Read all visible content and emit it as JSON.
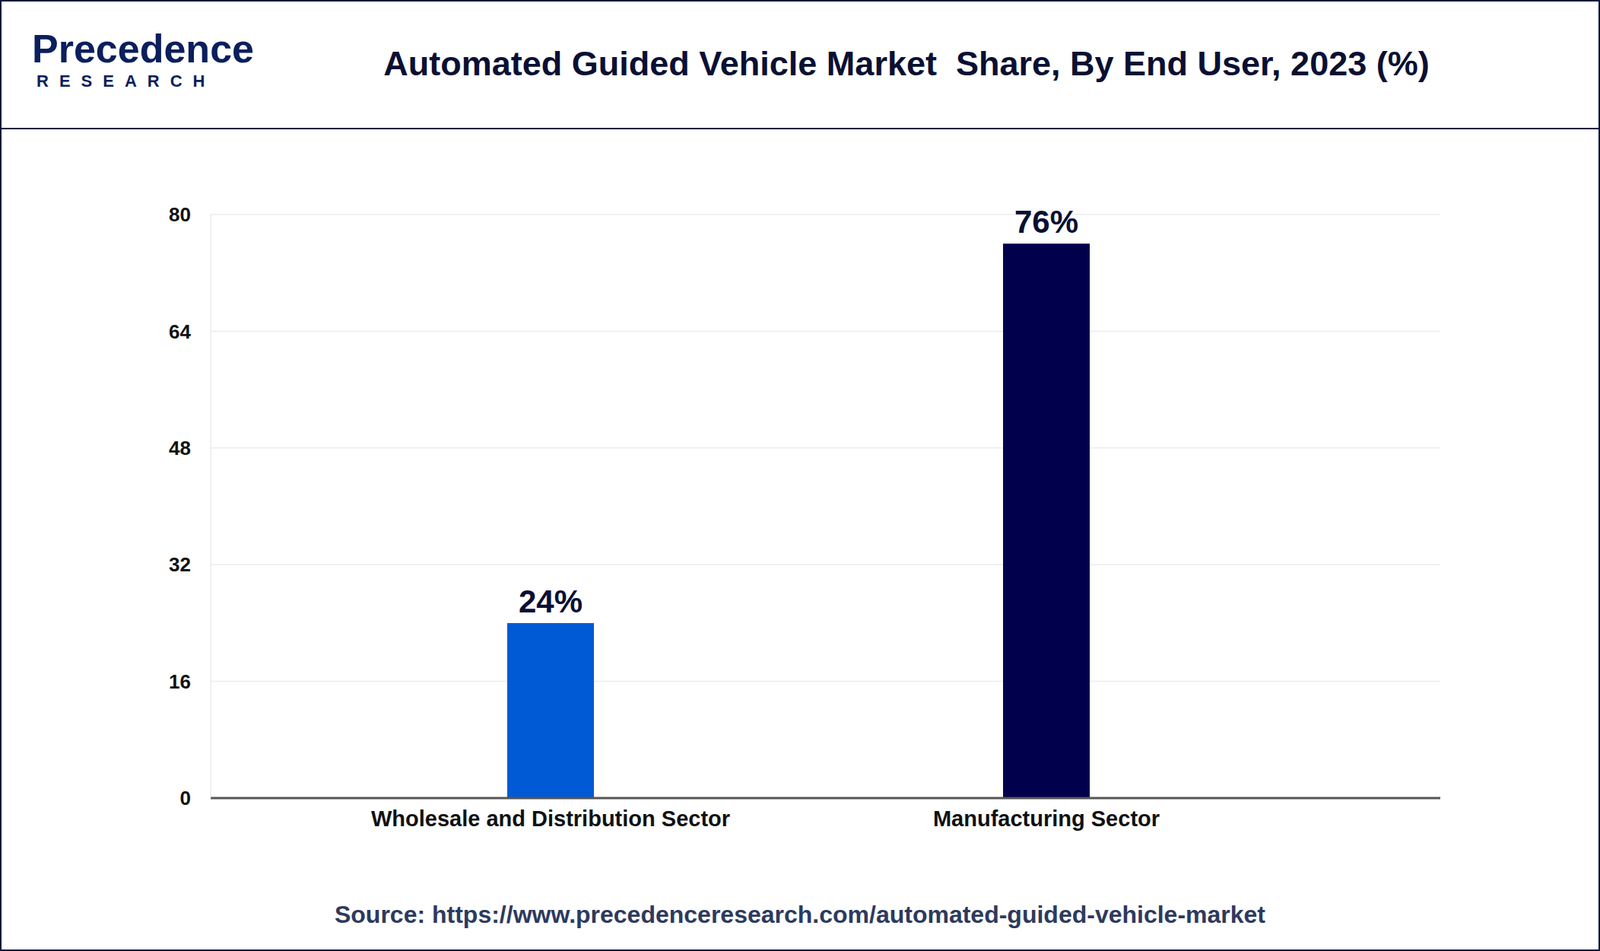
{
  "chart_data": {
    "type": "bar",
    "title": "Automated Guided Vehicle Market  Share, By End User, 2023 (%)",
    "logo": "Precedence",
    "logo_subtitle": "RESEARCH",
    "source": "Source: https://www.precedenceresearch.com/automated-guided-vehicle-market",
    "categories": [
      "Wholesale and Distribution Sector",
      "Manufacturing Sector"
    ],
    "values": [
      24,
      76
    ],
    "value_labels": [
      "24%",
      "76%"
    ],
    "colors": [
      "#005ad6",
      "#00004d"
    ],
    "ylim": [
      0,
      80
    ],
    "yticks": [
      0,
      16,
      32,
      48,
      64,
      80
    ],
    "grid": true,
    "data_labels": true
  }
}
